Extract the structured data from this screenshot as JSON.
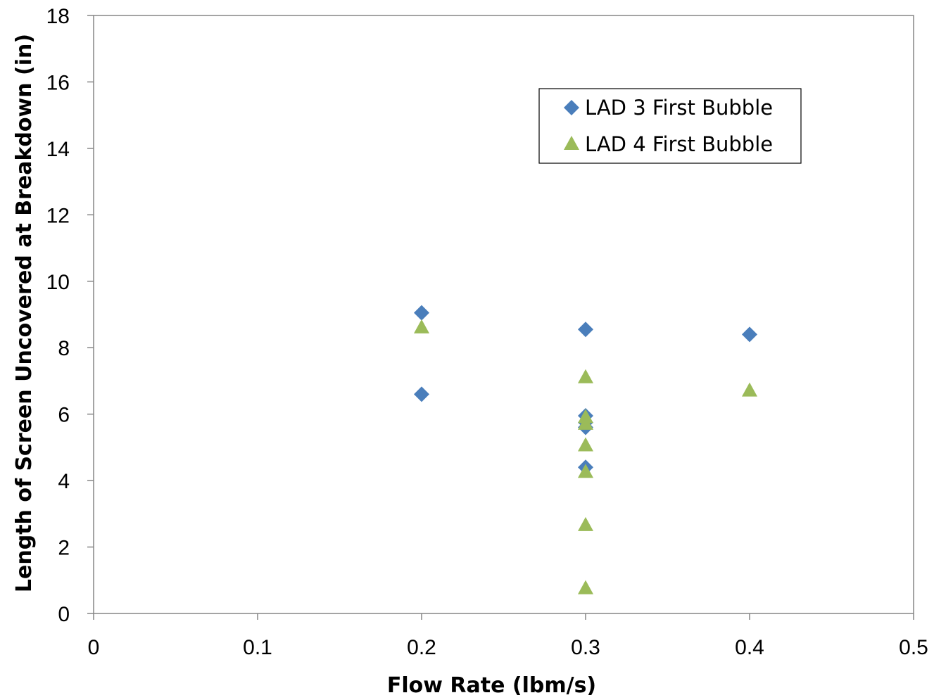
{
  "chart_data": {
    "type": "scatter",
    "xlabel": "Flow Rate (lbm/s)",
    "ylabel": "Length of Screen Uncovered at Breakdown (in)",
    "xlim": [
      0,
      0.5
    ],
    "ylim": [
      0,
      18
    ],
    "xticks": [
      0,
      0.1,
      0.2,
      0.3,
      0.4,
      0.5
    ],
    "xtick_labels": [
      "0",
      "0.1",
      "0.2",
      "0.3",
      "0.4",
      "0.5"
    ],
    "yticks": [
      0,
      2,
      4,
      6,
      8,
      10,
      12,
      14,
      16,
      18
    ],
    "ytick_labels": [
      "0",
      "2",
      "4",
      "6",
      "8",
      "10",
      "12",
      "14",
      "16",
      "18"
    ],
    "grid": false,
    "legend_position": "top-right",
    "series": [
      {
        "name": "LAD 3 First Bubble",
        "marker": "diamond",
        "color": "#4a7ebb",
        "points": [
          {
            "x": 0.2,
            "y": 9.05
          },
          {
            "x": 0.2,
            "y": 6.6
          },
          {
            "x": 0.3,
            "y": 8.55
          },
          {
            "x": 0.3,
            "y": 5.95
          },
          {
            "x": 0.3,
            "y": 5.75
          },
          {
            "x": 0.3,
            "y": 5.6
          },
          {
            "x": 0.3,
            "y": 4.4
          },
          {
            "x": 0.4,
            "y": 8.4
          }
        ]
      },
      {
        "name": "LAD 4 First Bubble",
        "marker": "triangle",
        "color": "#9bbb59",
        "points": [
          {
            "x": 0.2,
            "y": 8.6
          },
          {
            "x": 0.3,
            "y": 7.1
          },
          {
            "x": 0.3,
            "y": 5.9
          },
          {
            "x": 0.3,
            "y": 5.7
          },
          {
            "x": 0.3,
            "y": 5.05
          },
          {
            "x": 0.3,
            "y": 4.25
          },
          {
            "x": 0.3,
            "y": 2.65
          },
          {
            "x": 0.3,
            "y": 0.75
          },
          {
            "x": 0.4,
            "y": 6.7
          }
        ]
      }
    ]
  }
}
